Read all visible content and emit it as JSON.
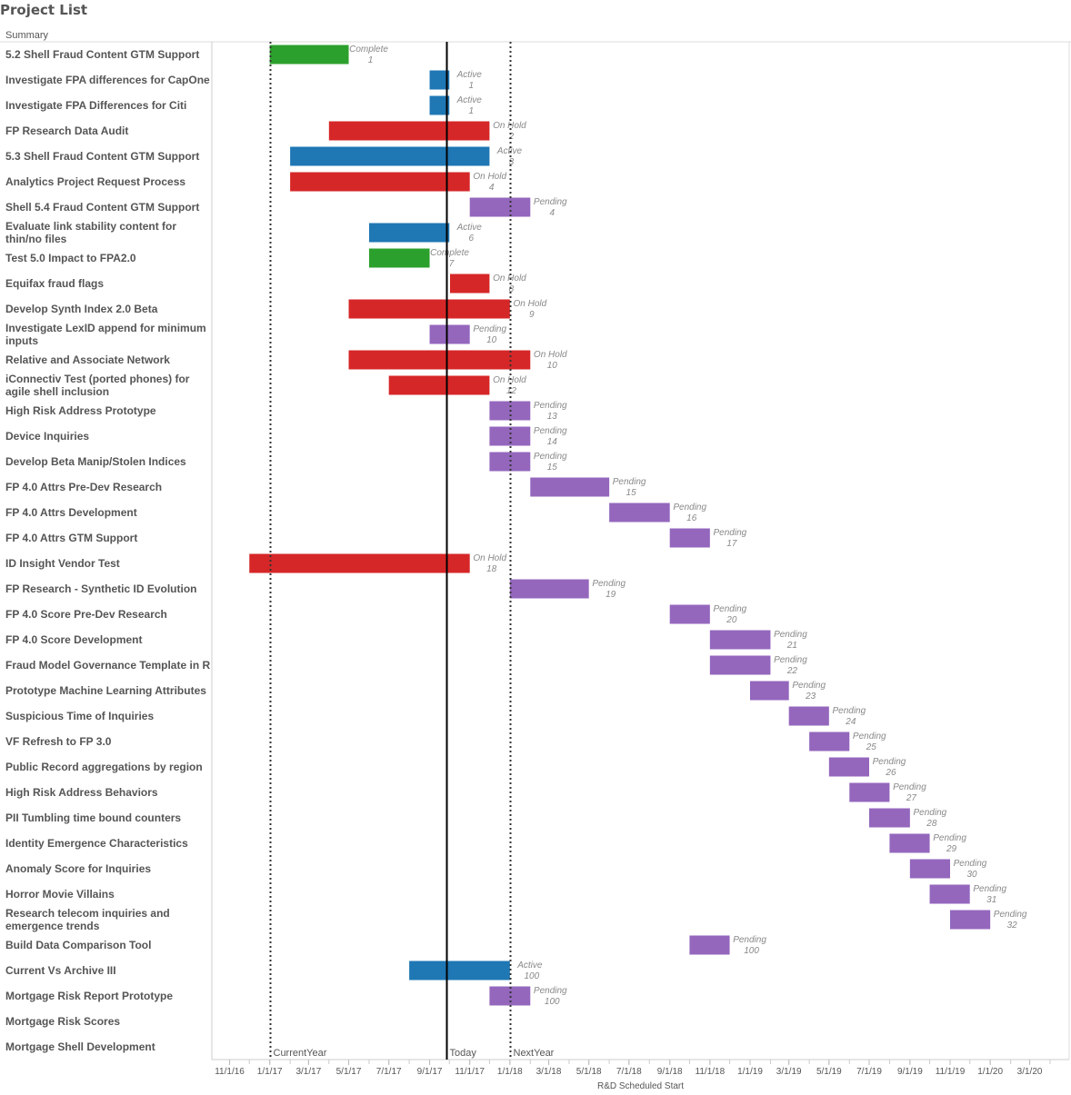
{
  "title": "Project List",
  "column_header": "Summary",
  "chart_data": {
    "type": "gantt",
    "xlabel": "R&D Scheduled Start",
    "xlim": [
      "2016-10-05",
      "2020-04-30"
    ],
    "x_ticks": [
      "11/1/16",
      "1/1/17",
      "3/1/17",
      "5/1/17",
      "7/1/17",
      "9/1/17",
      "11/1/17",
      "1/1/18",
      "3/1/18",
      "5/1/18",
      "7/1/18",
      "9/1/18",
      "11/1/18",
      "1/1/19",
      "3/1/19",
      "5/1/19",
      "7/1/19",
      "9/1/19",
      "11/1/19",
      "1/1/20",
      "3/1/20"
    ],
    "status_colors": {
      "Complete": "#2ca02c",
      "Active": "#1f77b4",
      "On Hold": "#d62728",
      "Pending": "#9467bd"
    },
    "reference_lines": [
      {
        "label": "CurrentYear",
        "date": "2017-01-01",
        "style": "dotted"
      },
      {
        "label": "Today",
        "date": "2017-09-26",
        "style": "solid"
      },
      {
        "label": "NextYear",
        "date": "2018-01-01",
        "style": "dotted"
      }
    ],
    "rows": [
      {
        "name": "5.2 Shell Fraud Content GTM Support",
        "start": "2017-01-01",
        "end": "2017-05-01",
        "status": "Complete",
        "num": "1"
      },
      {
        "name": "Investigate FPA differences for CapOne",
        "start": "2017-09-01",
        "end": "2017-10-01",
        "status": "Active",
        "num": "1"
      },
      {
        "name": "Investigate FPA Differences for Citi",
        "start": "2017-09-01",
        "end": "2017-10-01",
        "status": "Active",
        "num": "1"
      },
      {
        "name": "FP Research Data Audit",
        "start": "2017-04-01",
        "end": "2017-12-01",
        "status": "On Hold",
        "num": "2"
      },
      {
        "name": "5.3 Shell Fraud Content GTM Support",
        "start": "2017-02-01",
        "end": "2017-12-01",
        "status": "Active",
        "num": "3"
      },
      {
        "name": "Analytics Project Request Process",
        "start": "2017-02-01",
        "end": "2017-11-01",
        "status": "On Hold",
        "num": "4"
      },
      {
        "name": "Shell 5.4 Fraud Content GTM Support",
        "start": "2017-11-01",
        "end": "2018-02-01",
        "status": "Pending",
        "num": "4"
      },
      {
        "name": "Evaluate link stability content for|thin/no files",
        "start": "2017-06-01",
        "end": "2017-10-01",
        "status": "Active",
        "num": "6"
      },
      {
        "name": "Test 5.0 Impact to FPA2.0",
        "start": "2017-06-01",
        "end": "2017-09-01",
        "status": "Complete",
        "num": "7"
      },
      {
        "name": "Equifax fraud flags",
        "start": "2017-10-02",
        "end": "2017-12-01",
        "status": "On Hold",
        "num": "8"
      },
      {
        "name": "Develop Synth Index 2.0 Beta",
        "start": "2017-05-01",
        "end": "2018-01-01",
        "status": "On Hold",
        "num": "9"
      },
      {
        "name": "Investigate LexID append for minimum|inputs",
        "start": "2017-09-01",
        "end": "2017-11-01",
        "status": "Pending",
        "num": "10"
      },
      {
        "name": "Relative and Associate Network",
        "start": "2017-05-01",
        "end": "2018-02-01",
        "status": "On Hold",
        "num": "10"
      },
      {
        "name": "iConnectiv Test (ported phones) for|agile shell inclusion",
        "start": "2017-07-01",
        "end": "2017-12-01",
        "status": "On Hold",
        "num": "12"
      },
      {
        "name": "High Risk Address Prototype",
        "start": "2017-12-01",
        "end": "2018-02-01",
        "status": "Pending",
        "num": "13"
      },
      {
        "name": "Device Inquiries",
        "start": "2017-12-01",
        "end": "2018-02-01",
        "status": "Pending",
        "num": "14"
      },
      {
        "name": "Develop Beta Manip/Stolen Indices",
        "start": "2017-12-01",
        "end": "2018-02-01",
        "status": "Pending",
        "num": "15"
      },
      {
        "name": "FP 4.0 Attrs Pre-Dev Research",
        "start": "2018-02-01",
        "end": "2018-06-01",
        "status": "Pending",
        "num": "15"
      },
      {
        "name": "FP 4.0 Attrs Development",
        "start": "2018-06-01",
        "end": "2018-09-01",
        "status": "Pending",
        "num": "16"
      },
      {
        "name": "FP 4.0 Attrs GTM Support",
        "start": "2018-09-01",
        "end": "2018-11-01",
        "status": "Pending",
        "num": "17"
      },
      {
        "name": "ID Insight Vendor Test",
        "start": "2016-12-01",
        "end": "2017-11-01",
        "status": "On Hold",
        "num": "18"
      },
      {
        "name": "FP Research - Synthetic ID Evolution",
        "start": "2018-01-01",
        "end": "2018-05-01",
        "status": "Pending",
        "num": "19"
      },
      {
        "name": "FP 4.0 Score Pre-Dev Research",
        "start": "2018-09-01",
        "end": "2018-11-01",
        "status": "Pending",
        "num": "20"
      },
      {
        "name": "FP 4.0 Score Development",
        "start": "2018-11-01",
        "end": "2019-02-01",
        "status": "Pending",
        "num": "21"
      },
      {
        "name": "Fraud Model Governance Template in R",
        "start": "2018-11-01",
        "end": "2019-02-01",
        "status": "Pending",
        "num": "22"
      },
      {
        "name": "Prototype Machine Learning Attributes",
        "start": "2019-01-01",
        "end": "2019-03-01",
        "status": "Pending",
        "num": "23"
      },
      {
        "name": "Suspicious Time of Inquiries",
        "start": "2019-03-01",
        "end": "2019-05-01",
        "status": "Pending",
        "num": "24"
      },
      {
        "name": "VF Refresh to FP 3.0",
        "start": "2019-04-01",
        "end": "2019-06-01",
        "status": "Pending",
        "num": "25"
      },
      {
        "name": "Public Record aggregations by region",
        "start": "2019-05-01",
        "end": "2019-07-01",
        "status": "Pending",
        "num": "26"
      },
      {
        "name": "High Risk Address Behaviors",
        "start": "2019-06-01",
        "end": "2019-08-01",
        "status": "Pending",
        "num": "27"
      },
      {
        "name": "PII Tumbling time bound counters",
        "start": "2019-07-01",
        "end": "2019-09-01",
        "status": "Pending",
        "num": "28"
      },
      {
        "name": "Identity Emergence Characteristics",
        "start": "2019-08-01",
        "end": "2019-10-01",
        "status": "Pending",
        "num": "29"
      },
      {
        "name": "Anomaly Score for Inquiries",
        "start": "2019-09-01",
        "end": "2019-11-01",
        "status": "Pending",
        "num": "30"
      },
      {
        "name": "Horror Movie Villains",
        "start": "2019-10-01",
        "end": "2019-12-01",
        "status": "Pending",
        "num": "31"
      },
      {
        "name": "Research telecom inquiries and|emergence trends",
        "start": "2019-11-01",
        "end": "2020-01-01",
        "status": "Pending",
        "num": "32"
      },
      {
        "name": "Build Data Comparison Tool",
        "start": "2018-10-01",
        "end": "2018-12-01",
        "status": "Pending",
        "num": "100"
      },
      {
        "name": "Current Vs Archive III",
        "start": "2017-08-01",
        "end": "2018-01-01",
        "status": "Active",
        "num": "100"
      },
      {
        "name": "Mortgage Risk Report Prototype",
        "start": "2017-12-01",
        "end": "2018-02-01",
        "status": "Pending",
        "num": "100"
      },
      {
        "name": "Mortgage Risk Scores"
      },
      {
        "name": "Mortgage Shell Development"
      }
    ]
  }
}
